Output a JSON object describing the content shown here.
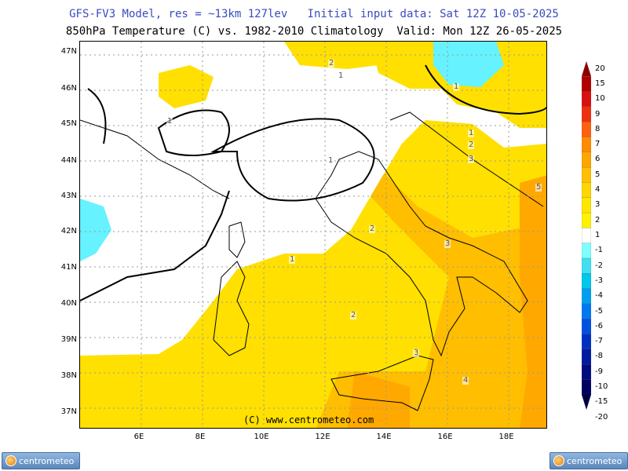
{
  "titles": {
    "line1": "GFS-FV3 Model, res = ~13km 127lev   Initial input data: Sat 12Z 10-05-2025",
    "line2": "850hPa Temperature (C) vs. 1982-2010 Climatology  Valid: Mon 12Z 26-05-2025"
  },
  "axes": {
    "lat_labels": [
      "47N",
      "46N",
      "45N",
      "44N",
      "43N",
      "42N",
      "41N",
      "40N",
      "39N",
      "38N",
      "37N"
    ],
    "lon_labels": [
      "6E",
      "8E",
      "10E",
      "12E",
      "14E",
      "16E",
      "18E"
    ]
  },
  "contour_labels": [
    "1",
    "1",
    "1",
    "1",
    "1",
    "2",
    "2",
    "3",
    "3",
    "2",
    "2",
    "3",
    "4",
    "1",
    "5"
  ],
  "colorbar": {
    "ticks": [
      "20",
      "15",
      "10",
      "9",
      "8",
      "7",
      "6",
      "5",
      "4",
      "3",
      "2",
      "1",
      "-1",
      "-2",
      "-3",
      "-4",
      "-5",
      "-6",
      "-7",
      "-8",
      "-9",
      "-10",
      "-15",
      "-20"
    ],
    "colors": [
      "#8b0000",
      "#b00000",
      "#d81010",
      "#ee3010",
      "#ff6010",
      "#ff8c00",
      "#ffa500",
      "#ffc000",
      "#ffd700",
      "#ffe600",
      "#fff200",
      "#ffffff",
      "#7fffff",
      "#40e0f0",
      "#00c8e8",
      "#00a0f0",
      "#0078f0",
      "#0050e0",
      "#0030c0",
      "#001aa0",
      "#000c80",
      "#000060",
      "#000040"
    ]
  },
  "copyright": "(C) www.centrometeo.com",
  "logo_text": "centrometeo"
}
